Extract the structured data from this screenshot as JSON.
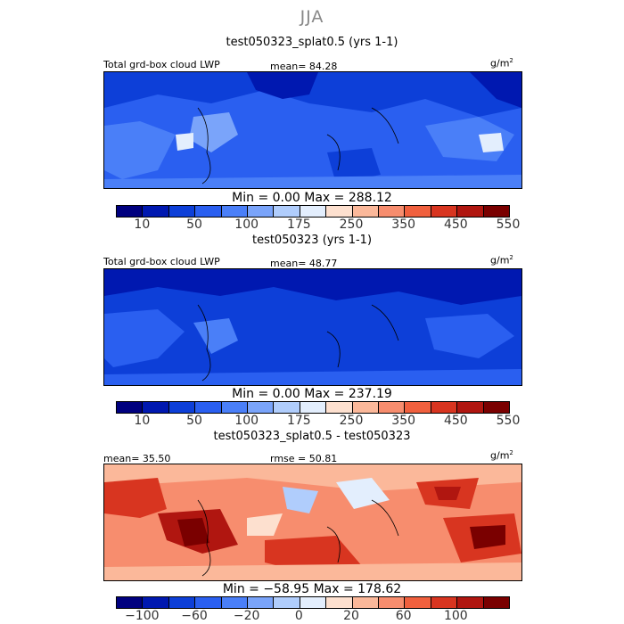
{
  "season_title": "JJA",
  "chart_data": [
    {
      "type": "heatmap",
      "title": "test050323_splat0.5 (yrs 1-1)",
      "field_label": "Total grd-box cloud LWP",
      "mean_text": "mean=  84.28",
      "units_base": "g/m",
      "units_exp": "2",
      "minmax_text": "Min =    0.00 Max = 288.12",
      "color_levels": [
        "#00007f",
        "#0018b0",
        "#0d3fd8",
        "#2a5ff0",
        "#4a7ff8",
        "#7aa4fa",
        "#b0cdfc",
        "#e3eefd",
        "#fde0cf",
        "#fbb89a",
        "#f78d6e",
        "#f0603e",
        "#d83520",
        "#b01610",
        "#7a0000"
      ],
      "colorbar_labels": [
        "10",
        "50",
        "100",
        "175",
        "250",
        "350",
        "450",
        "550"
      ],
      "colorbar_label_index": [
        1,
        3,
        5,
        7,
        9,
        11,
        13,
        15
      ]
    },
    {
      "type": "heatmap",
      "title": "test050323 (yrs 1-1)",
      "field_label": "Total grd-box cloud LWP",
      "mean_text": "mean=  48.77",
      "units_base": "g/m",
      "units_exp": "2",
      "minmax_text": "Min =    0.00 Max = 237.19",
      "color_levels": [
        "#00007f",
        "#0018b0",
        "#0d3fd8",
        "#2a5ff0",
        "#4a7ff8",
        "#7aa4fa",
        "#b0cdfc",
        "#e3eefd",
        "#fde0cf",
        "#fbb89a",
        "#f78d6e",
        "#f0603e",
        "#d83520",
        "#b01610",
        "#7a0000"
      ],
      "colorbar_labels": [
        "10",
        "50",
        "100",
        "175",
        "250",
        "350",
        "450",
        "550"
      ],
      "colorbar_label_index": [
        1,
        3,
        5,
        7,
        9,
        11,
        13,
        15
      ]
    },
    {
      "type": "heatmap",
      "title": "test050323_splat0.5 - test050323",
      "mean_text": "mean=  35.50",
      "rmse_text": "rmse =  50.81",
      "units_base": "g/m",
      "units_exp": "2",
      "minmax_text": "Min = −58.95 Max = 178.62",
      "color_levels": [
        "#00007f",
        "#0018b0",
        "#0d3fd8",
        "#2a5ff0",
        "#4a7ff8",
        "#7aa4fa",
        "#b0cdfc",
        "#e3eefd",
        "#fde0cf",
        "#fbb89a",
        "#f78d6e",
        "#f0603e",
        "#d83520",
        "#b01610",
        "#7a0000"
      ],
      "colorbar_labels": [
        "−100",
        "−60",
        "−20",
        "0",
        "20",
        "60",
        "100"
      ],
      "colorbar_label_index": [
        1,
        3,
        5,
        7,
        9,
        11,
        13
      ]
    }
  ]
}
